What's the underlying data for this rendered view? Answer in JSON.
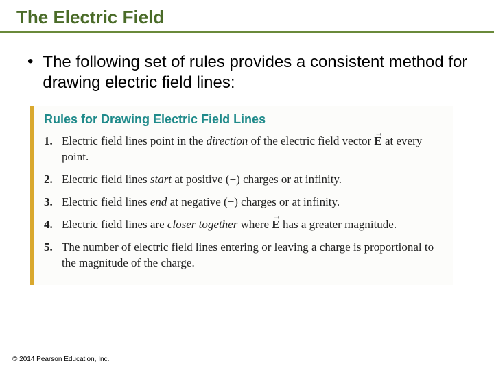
{
  "colors": {
    "title_text": "#4a6b28",
    "title_underline": "#6a8a3a",
    "rules_bar": "#d9a82e",
    "rules_heading": "#1f8a8a",
    "body_text": "#000000",
    "rules_bg": "#fcfcfa",
    "page_bg": "#ffffff"
  },
  "typography": {
    "title_fontsize": 26,
    "bullet_fontsize": 24,
    "rules_heading_fontsize": 18,
    "rule_fontsize": 17,
    "copyright_fontsize": 10,
    "title_font": "Arial",
    "body_font": "Arial",
    "rules_font": "Georgia"
  },
  "title": "The Electric Field",
  "bullet": "The following set of rules provides a consistent method for drawing electric field lines:",
  "rules_heading": "Rules for Drawing Electric Field Lines",
  "rules": [
    {
      "num": "1.",
      "html": "Electric field lines point in the <i>direction</i> of the electric field vector <span class=\"vec\"><b>E</b></span> at every point."
    },
    {
      "num": "2.",
      "html": "Electric field lines <i>start</i> at positive (+) charges or at infinity."
    },
    {
      "num": "3.",
      "html": "Electric field lines <i>end</i> at negative (−) charges or at infinity."
    },
    {
      "num": "4.",
      "html": "Electric field lines are <i>closer together</i> where <span class=\"vec\"><b>E</b></span> has a greater magnitude."
    },
    {
      "num": "5.",
      "html": "The number of electric field lines entering or leaving a charge is proportional to the magnitude of the charge."
    }
  ],
  "copyright": "© 2014 Pearson Education, Inc."
}
